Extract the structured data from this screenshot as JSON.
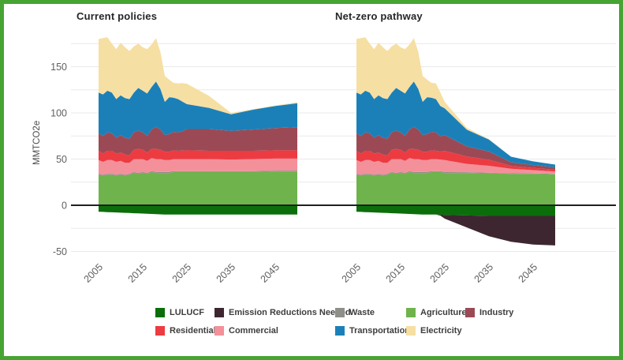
{
  "figure": {
    "border_color": "#46a433",
    "background": "#ffffff"
  },
  "y_axis_label": "MMTCO2e",
  "legend": {
    "rows": [
      [
        "lulucf",
        "emission_reductions_needed",
        "waste",
        "agriculture",
        "industry"
      ],
      [
        "residential",
        "commercial",
        "transportation",
        "electricity"
      ]
    ]
  },
  "chart_data": {
    "type": "area",
    "stacked": true,
    "title": "",
    "xlabel": "",
    "ylabel": "MMTCO2e",
    "unit": "MMTCO2e",
    "ylim": [
      -60,
      190
    ],
    "x_range": [
      2005,
      2050
    ],
    "grid": true,
    "gridline_step": 25,
    "y_ticks": [
      150,
      100,
      50,
      0,
      -50
    ],
    "x_ticks": [
      "2005",
      "2015",
      "2025",
      "2035",
      "2045"
    ],
    "legend_position": "bottom",
    "zero_line": true,
    "series_meta": [
      {
        "key": "lulucf",
        "label": "LULUCF",
        "color": "#0b6e0b",
        "sign": "negative"
      },
      {
        "key": "emission_reductions_needed",
        "label": "Emission Reductions Needed",
        "color": "#3e2631",
        "sign": "negative"
      },
      {
        "key": "waste",
        "label": "Waste",
        "color": "#8f8f8a",
        "sign": "positive"
      },
      {
        "key": "agriculture",
        "label": "Agriculture",
        "color": "#6fb34c",
        "sign": "positive"
      },
      {
        "key": "industry",
        "label": "Industry",
        "color": "#9b4a55",
        "sign": "positive"
      },
      {
        "key": "residential",
        "label": "Residential",
        "color": "#ed3b42",
        "sign": "positive"
      },
      {
        "key": "commercial",
        "label": "Commercial",
        "color": "#f4909a",
        "sign": "positive"
      },
      {
        "key": "transportation",
        "label": "Transportation",
        "color": "#1c80b8",
        "sign": "positive"
      },
      {
        "key": "electricity",
        "label": "Electricity",
        "color": "#f6dfa3",
        "sign": "positive"
      }
    ],
    "stack_order_positive": [
      "agriculture",
      "waste",
      "commercial",
      "residential",
      "industry",
      "transportation",
      "electricity"
    ],
    "stack_order_negative": [
      "lulucf",
      "emission_reductions_needed"
    ],
    "years": [
      2005,
      2006,
      2007,
      2008,
      2009,
      2010,
      2011,
      2012,
      2013,
      2014,
      2015,
      2016,
      2017,
      2018,
      2019,
      2020,
      2021,
      2022,
      2023,
      2024,
      2025,
      2030,
      2035,
      2040,
      2045,
      2050
    ],
    "panels": [
      {
        "key": "current",
        "title": "Current policies",
        "series": {
          "agriculture": [
            33,
            32,
            33,
            33,
            32,
            33,
            32,
            33,
            35,
            34,
            35,
            34,
            36,
            35,
            35,
            35,
            35,
            36,
            36,
            36,
            36,
            36,
            36,
            36,
            36.5,
            36.5
          ],
          "waste": [
            1,
            1,
            1,
            1,
            1,
            1,
            1,
            1,
            1,
            1,
            1,
            1,
            1,
            1,
            1,
            1,
            1,
            1,
            1,
            1,
            1,
            1,
            1,
            1,
            1,
            1
          ],
          "commercial": [
            15,
            14,
            15,
            15,
            14,
            14,
            13,
            12,
            14,
            15,
            14,
            13,
            14,
            14,
            14,
            13,
            13,
            13,
            13,
            13,
            13,
            13,
            12.5,
            13,
            13,
            13
          ],
          "residential": [
            10,
            9,
            10,
            10,
            9,
            9,
            9,
            8,
            10,
            11,
            10,
            9,
            10,
            11,
            10,
            9,
            9,
            9.5,
            9,
            9.2,
            9.5,
            9,
            9.5,
            9,
            9,
            9
          ],
          "industry": [
            19,
            19,
            20,
            19,
            17,
            19,
            18,
            18,
            19,
            20,
            19,
            18,
            21,
            24,
            22,
            18,
            19,
            20,
            20,
            21,
            23,
            23.5,
            21.5,
            23,
            24,
            25
          ],
          "transportation": [
            44,
            45,
            45,
            44,
            42,
            43,
            43,
            43,
            43,
            46,
            45,
            46,
            46,
            49,
            44,
            36,
            40,
            37,
            36,
            32,
            27,
            23,
            18,
            21.5,
            24,
            26
          ],
          "electricity": [
            58,
            61,
            58,
            53,
            54,
            57,
            55,
            52,
            50,
            48,
            47,
            48,
            46,
            47,
            40,
            28,
            19,
            16,
            17,
            20,
            22,
            13,
            1.5,
            0.5,
            0.5,
            1
          ],
          "lulucf": [
            -7,
            -7.2,
            -7.4,
            -7.6,
            -7.8,
            -8,
            -8.2,
            -8.4,
            -8.6,
            -8.8,
            -9,
            -9.2,
            -9.4,
            -9.6,
            -9.8,
            -10,
            -10,
            -10,
            -10,
            -10,
            -10,
            -10,
            -10,
            -10,
            -10,
            -10
          ],
          "emission_reductions_needed": [
            0,
            0,
            0,
            0,
            0,
            0,
            0,
            0,
            0,
            0,
            0,
            0,
            0,
            0,
            0,
            0,
            0,
            0,
            0,
            0,
            0,
            0,
            0,
            0,
            0,
            0
          ]
        }
      },
      {
        "key": "netzero",
        "title": "Net-zero pathway",
        "series": {
          "agriculture": [
            33,
            32,
            33,
            33,
            32,
            33,
            32,
            33,
            35,
            34,
            35,
            34,
            36,
            35,
            35,
            35,
            35,
            36,
            36,
            36,
            35,
            35,
            34.5,
            34,
            34,
            33.5
          ],
          "waste": [
            1,
            1,
            1,
            1,
            1,
            1,
            1,
            1,
            1,
            1,
            1,
            1,
            1,
            1,
            1,
            1,
            1,
            1,
            1,
            1,
            0.9,
            0.8,
            0.7,
            0.6,
            0.5,
            0.5
          ],
          "commercial": [
            15,
            14,
            15,
            15,
            14,
            14,
            13,
            12,
            14,
            15,
            14,
            13,
            14,
            14,
            14,
            13,
            13,
            13,
            13,
            12.5,
            13,
            9,
            7.5,
            5,
            3.5,
            2.5
          ],
          "residential": [
            10,
            9,
            10,
            10,
            9,
            9,
            9,
            8,
            10,
            11,
            10,
            9,
            10,
            11,
            10,
            9,
            9,
            9.5,
            9,
            9,
            10,
            8,
            6.5,
            3,
            2.5,
            2
          ],
          "industry": [
            19,
            19,
            20,
            19,
            17,
            19,
            18,
            18,
            19,
            20,
            19,
            18,
            21,
            24,
            22,
            18,
            19,
            20,
            20,
            16,
            17,
            11,
            9,
            4,
            3,
            2.5
          ],
          "transportation": [
            44,
            45,
            45,
            44,
            42,
            43,
            43,
            43,
            43,
            46,
            45,
            46,
            46,
            49,
            44,
            36,
            40,
            37,
            36,
            33,
            29,
            18,
            13,
            6,
            4,
            3
          ],
          "electricity": [
            58,
            61,
            58,
            53,
            54,
            57,
            55,
            52,
            50,
            48,
            47,
            48,
            46,
            47,
            40,
            28,
            19,
            16,
            17,
            14.5,
            7,
            2,
            0.5,
            0,
            0,
            0
          ],
          "lulucf": [
            -7,
            -7.2,
            -7.4,
            -7.6,
            -7.8,
            -8,
            -8.2,
            -8.4,
            -8.6,
            -8.8,
            -9,
            -9.2,
            -9.4,
            -9.6,
            -9.8,
            -10,
            -10,
            -10,
            -10,
            -10.2,
            -10.5,
            -11,
            -11.5,
            -11.5,
            -11.5,
            -11.5
          ],
          "emission_reductions_needed": [
            0,
            0,
            0,
            0,
            0,
            0,
            0,
            0,
            0,
            0,
            0,
            0,
            0,
            0,
            0,
            0,
            0,
            0,
            0,
            -1,
            -4,
            -13,
            -22,
            -28,
            -31,
            -32
          ]
        }
      }
    ]
  }
}
